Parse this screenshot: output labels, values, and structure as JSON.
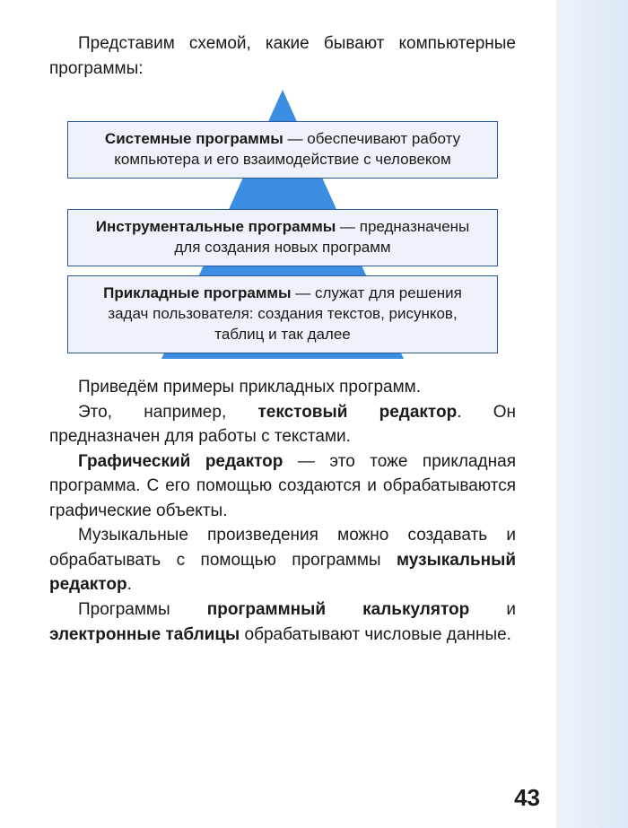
{
  "intro": "Представим схемой, какие бывают компьютерные программы:",
  "diagram": {
    "triangle_color": "#3a8de0",
    "box_bg": "#eef3fb",
    "box_border": "#2a5a9a",
    "boxes": [
      {
        "bold": "Системные программы",
        "rest": " — обеспечивают работу компьютера и его взаимодействие с человеком"
      },
      {
        "bold": "Инструментальные программы",
        "rest": " — предназначены для создания новых программ"
      },
      {
        "bold": "Прикладные программы",
        "rest": " — служат для решения задач пользователя: создания текстов, рисунков, таблиц и так далее"
      }
    ]
  },
  "body": {
    "p1": "Приведём примеры прикладных программ.",
    "p2_a": "Это, например, ",
    "p2_b": "текстовый редактор",
    "p2_c": ". Он предназначен для работы с текстами.",
    "p3_a": "Графический редактор",
    "p3_b": " — это тоже прикладная программа. С его помощью создаются и обрабатываются графические объекты.",
    "p4_a": "Музыкальные произведения можно создавать и обрабатывать с помощью программы ",
    "p4_b": "музыкальный редактор",
    "p4_c": ".",
    "p5_a": "Программы ",
    "p5_b": "программный калькулятор",
    "p5_c": " и ",
    "p5_d": "электронные таблицы",
    "p5_e": " обрабатывают числовые данные."
  },
  "page_number": "43",
  "colors": {
    "text": "#1a1a1a",
    "page_bg": "#ffffff",
    "strip_gradient": [
      "#f0f4f8",
      "#e8f0fa",
      "#dce8f5"
    ]
  },
  "fonts": {
    "body_size_pt": 14,
    "box_size_pt": 13,
    "pagenum_size_pt": 20
  }
}
